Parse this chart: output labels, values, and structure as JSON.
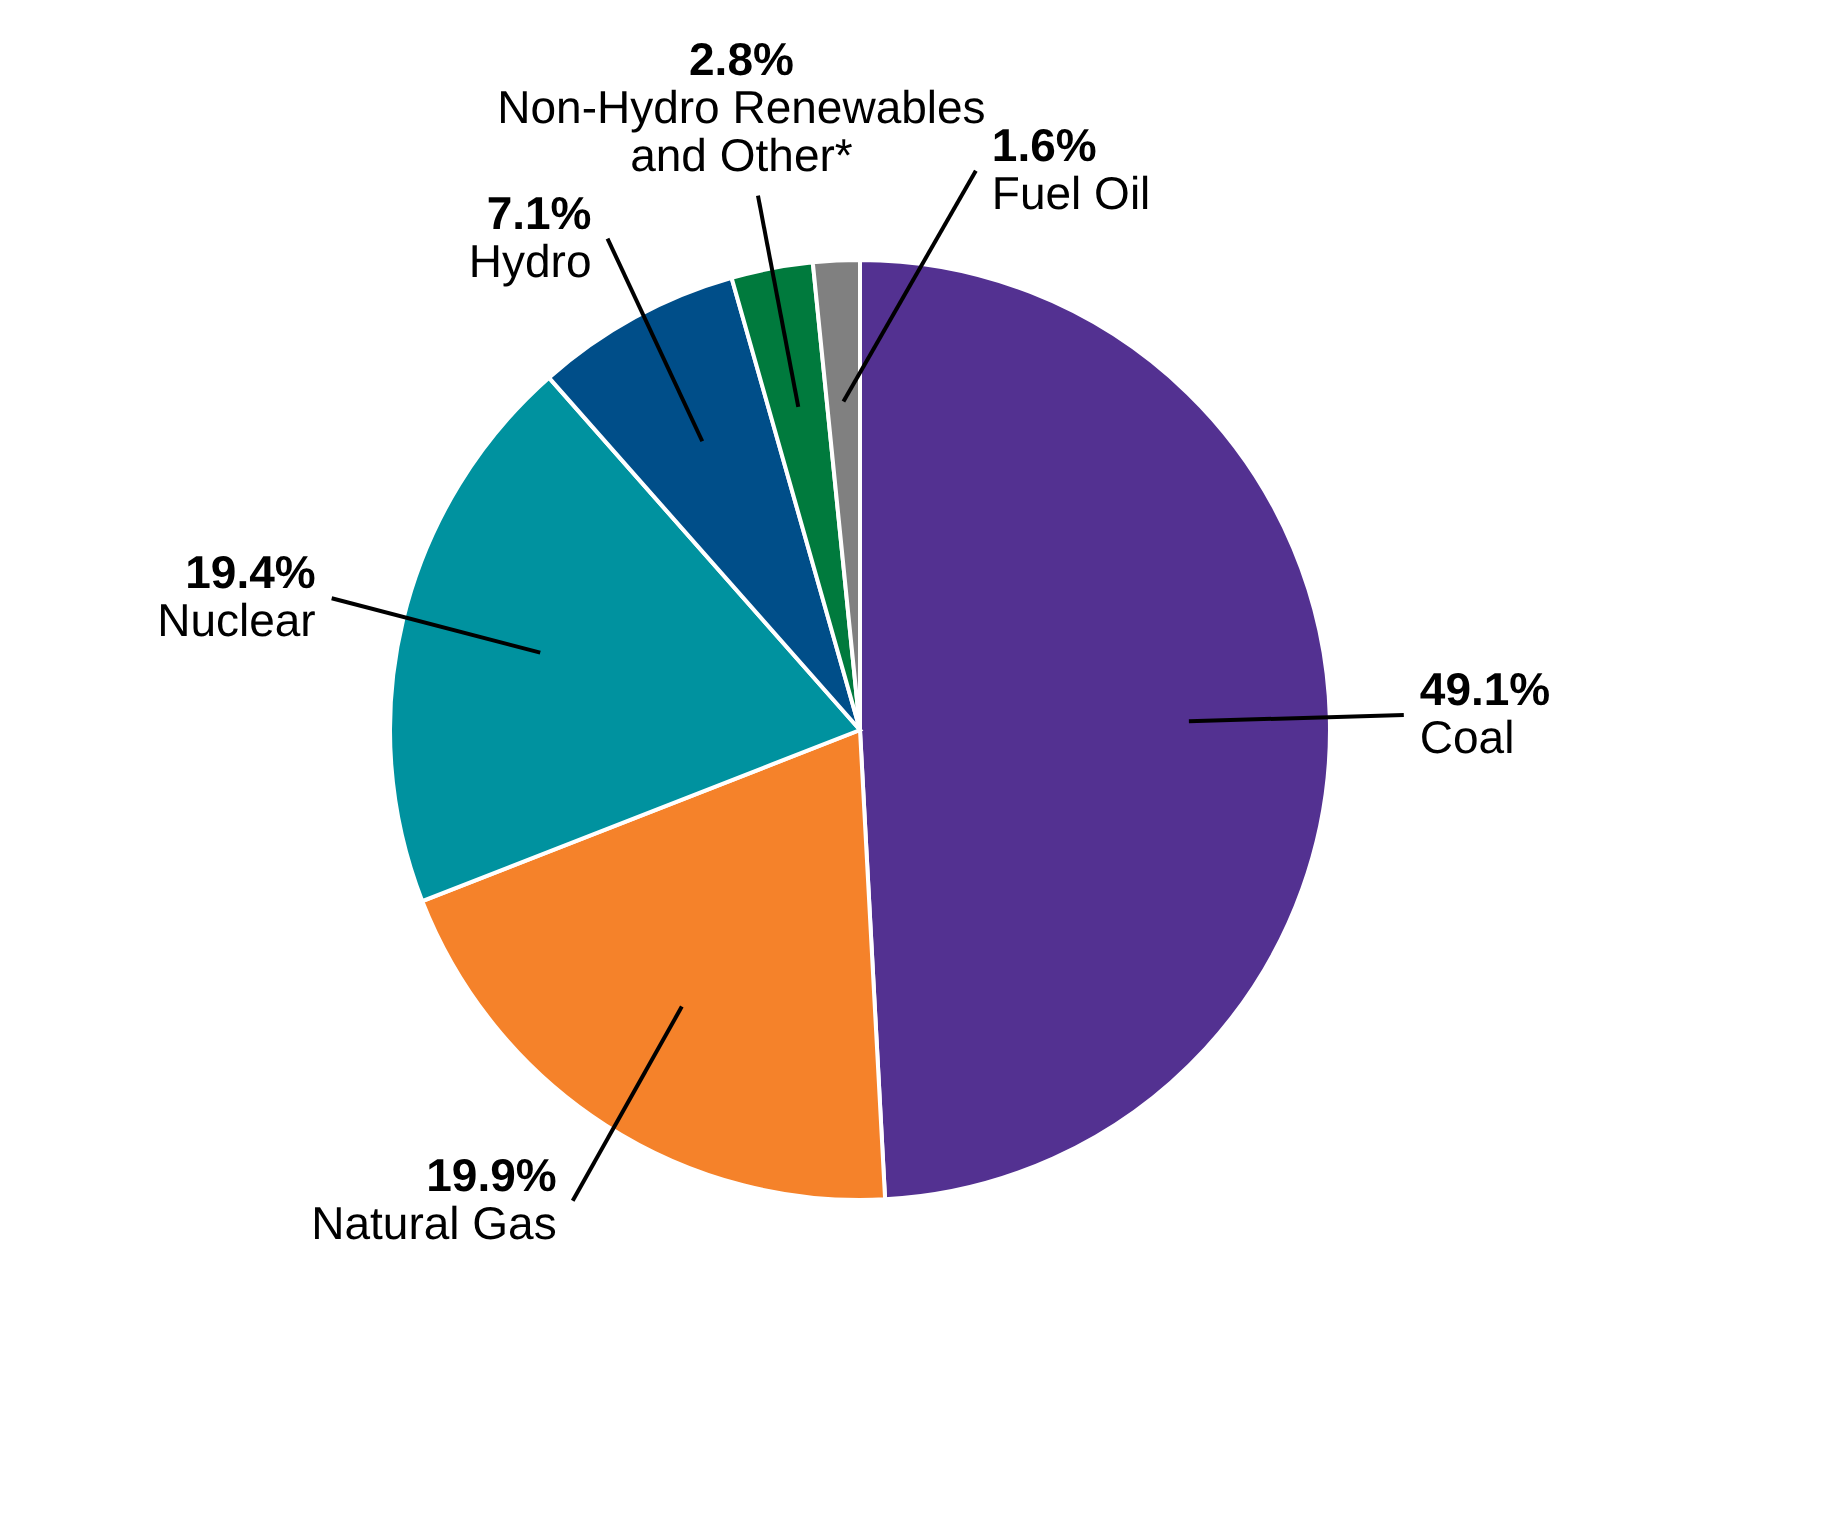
{
  "chart_data": {
    "type": "pie",
    "categories": [
      "Coal",
      "Natural Gas",
      "Nuclear",
      "Hydro",
      "Non-Hydro Renewables and Other*",
      "Fuel Oil"
    ],
    "values": [
      49.1,
      19.9,
      19.4,
      7.1,
      2.8,
      1.6
    ],
    "value_labels": [
      "49.1%",
      "19.9%",
      "19.4%",
      "7.1%",
      "2.8%",
      "1.6%"
    ],
    "colors": [
      "#533191",
      "#f5822a",
      "#00929f",
      "#004e89",
      "#007a3d",
      "#808080"
    ],
    "legend": false
  }
}
